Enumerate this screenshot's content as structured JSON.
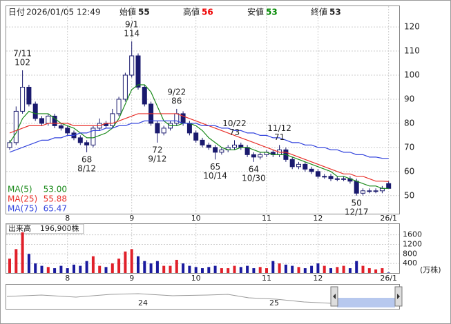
{
  "header": {
    "date_label": "日付",
    "date": "2026/01/05 12:49",
    "open_label": "始値",
    "open": 55,
    "high_label": "高値",
    "high": 56,
    "low_label": "安値",
    "low": 53,
    "close_label": "終値",
    "close": 53
  },
  "chart_data": {
    "type": "candlestick",
    "open": [
      70,
      72,
      85,
      95,
      88,
      82,
      80,
      83,
      79,
      78,
      76,
      74,
      72,
      71,
      78,
      80,
      79,
      84,
      90,
      100,
      108,
      95,
      88,
      80,
      76,
      78,
      80,
      84,
      80,
      76,
      73,
      71,
      70,
      68,
      69,
      70,
      71,
      70,
      67,
      66,
      67,
      68,
      67,
      69,
      65,
      62,
      63,
      61,
      60,
      58,
      58,
      57,
      57,
      57,
      56,
      51,
      52,
      52,
      52,
      55
    ],
    "high": [
      73,
      87,
      102,
      96,
      89,
      83,
      84,
      84,
      80,
      79,
      77,
      75,
      73,
      79,
      82,
      81,
      86,
      91,
      101,
      114,
      109,
      96,
      89,
      81,
      79,
      81,
      86,
      85,
      81,
      77,
      74,
      72,
      71,
      70,
      71,
      73,
      72,
      71,
      68,
      68,
      69,
      69,
      71,
      70,
      66,
      64,
      64,
      62,
      61,
      59,
      59,
      58,
      58,
      58,
      57,
      53,
      53,
      53,
      54,
      56
    ],
    "low": [
      69,
      71,
      84,
      87,
      81,
      79,
      79,
      78,
      77,
      75,
      73,
      71,
      68,
      70,
      77,
      78,
      78,
      83,
      89,
      99,
      94,
      87,
      79,
      72,
      75,
      77,
      79,
      79,
      75,
      72,
      70,
      69,
      65,
      67,
      68,
      69,
      69,
      66,
      64,
      65,
      66,
      66,
      66,
      64,
      61,
      61,
      60,
      59,
      57,
      57,
      56,
      56,
      56,
      55,
      50,
      50,
      51,
      51,
      51,
      53
    ],
    "close": [
      72,
      85,
      95,
      88,
      82,
      80,
      83,
      79,
      78,
      76,
      74,
      72,
      71,
      78,
      80,
      79,
      84,
      90,
      100,
      108,
      95,
      88,
      80,
      76,
      78,
      80,
      84,
      80,
      76,
      73,
      71,
      70,
      68,
      69,
      70,
      71,
      70,
      67,
      66,
      67,
      68,
      67,
      69,
      65,
      62,
      63,
      61,
      60,
      58,
      58,
      57,
      57,
      57,
      56,
      51,
      52,
      52,
      52,
      53,
      53
    ],
    "ylim": [
      42.5,
      128.6
    ],
    "yticks": [
      50,
      60,
      70,
      80,
      90,
      100,
      110,
      120
    ],
    "xticks": [
      {
        "value": 9,
        "label": "8"
      },
      {
        "value": 19,
        "label": "9"
      },
      {
        "value": 29,
        "label": "10"
      },
      {
        "value": 40,
        "label": "11"
      },
      {
        "value": 48,
        "label": "12"
      },
      {
        "value": 59,
        "label": "26/1"
      }
    ],
    "grid": true,
    "series": [
      {
        "name": "MA(5)",
        "color": "#1a8a1a",
        "values": [
          72,
          76,
          82,
          85,
          84,
          84,
          84,
          82,
          80,
          79,
          78,
          76,
          74,
          74,
          75,
          76,
          78,
          82,
          88,
          94,
          96,
          96,
          93,
          87,
          81,
          79,
          79,
          80,
          80,
          79,
          77,
          74,
          72,
          70,
          69,
          69,
          70,
          70,
          69,
          68,
          68,
          67,
          67,
          67,
          66,
          65,
          64,
          63,
          62,
          61,
          60,
          58,
          58,
          57,
          56,
          55,
          54,
          54,
          53,
          53
        ],
        "value_labels": "53.00"
      },
      {
        "name": "MA(25)",
        "color": "#e8302a",
        "values": [
          76,
          77,
          78,
          79,
          79,
          79,
          80,
          80,
          80,
          80,
          79,
          79,
          79,
          79,
          79,
          80,
          80,
          81,
          82,
          83,
          84,
          84,
          84,
          84,
          84,
          84,
          84,
          83,
          82,
          81,
          80,
          79,
          78,
          77,
          76,
          75,
          74,
          73,
          72,
          71,
          70,
          69,
          68,
          68,
          67,
          66,
          65,
          64,
          63,
          62,
          61,
          60,
          59,
          59,
          58,
          58,
          57,
          56,
          56,
          55.88
        ],
        "value_labels": "55.88"
      },
      {
        "name": "MA(75)",
        "color": "#3344dd",
        "values": [
          68,
          69,
          70,
          71,
          72,
          73,
          73,
          74,
          74,
          75,
          75,
          76,
          76,
          77,
          77,
          78,
          78,
          79,
          79,
          80,
          80,
          81,
          81,
          81,
          81,
          81,
          81,
          80,
          80,
          80,
          79,
          79,
          79,
          78,
          78,
          77,
          77,
          76,
          76,
          75,
          75,
          74,
          74,
          73,
          72,
          72,
          71,
          71,
          70,
          70,
          69,
          69,
          68,
          68,
          67,
          67,
          66,
          66,
          65.5,
          65.47
        ],
        "value_labels": "65.47"
      }
    ],
    "annotations": [
      {
        "index": 2,
        "date": "7/11",
        "value": 102,
        "side": "above"
      },
      {
        "index": 12,
        "date": "8/12",
        "value": 68,
        "side": "below"
      },
      {
        "index": 19,
        "date": "9/1",
        "value": 114,
        "side": "above"
      },
      {
        "index": 23,
        "date": "9/12",
        "value": 72,
        "side": "below"
      },
      {
        "index": 26,
        "date": "9/22",
        "value": 86,
        "side": "above"
      },
      {
        "index": 32,
        "date": "10/14",
        "value": 65,
        "side": "below"
      },
      {
        "index": 35,
        "date": "10/22",
        "value": 73,
        "side": "above"
      },
      {
        "index": 38,
        "date": "10/30",
        "value": 64,
        "side": "below"
      },
      {
        "index": 42,
        "date": "11/12",
        "value": 71,
        "side": "above"
      },
      {
        "index": 54,
        "date": "12/17",
        "value": 50,
        "side": "below"
      }
    ],
    "volume": {
      "title": "出来高",
      "last": 19.69,
      "last_label": "196,900株",
      "unit": "(万株)",
      "values": [
        600,
        1000,
        1700,
        800,
        400,
        300,
        250,
        200,
        300,
        200,
        350,
        300,
        500,
        700,
        300,
        250,
        400,
        600,
        900,
        1000,
        700,
        500,
        400,
        500,
        300,
        300,
        550,
        400,
        300,
        250,
        200,
        250,
        300,
        200,
        200,
        300,
        250,
        300,
        200,
        250,
        200,
        500,
        400,
        350,
        300,
        250,
        200,
        300,
        400,
        300,
        200,
        250,
        300,
        200,
        500,
        300,
        200,
        150,
        200,
        19.69
      ],
      "ylim": [
        0,
        2050
      ],
      "yticks": [
        400,
        800,
        1200,
        1600
      ]
    },
    "navigator": {
      "labels": [
        "24",
        "25"
      ]
    }
  }
}
